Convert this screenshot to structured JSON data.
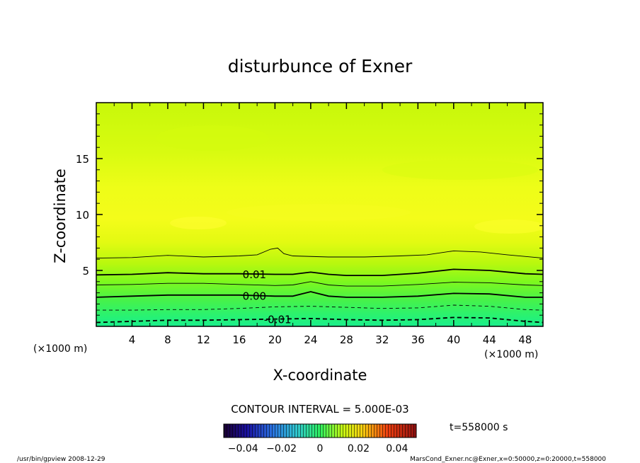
{
  "chart_data": {
    "type": "heatmap",
    "title": "disturbunce of Exner",
    "xlabel": "X-coordinate",
    "ylabel": "Z-coordinate",
    "x_unit_left": "(×1000 m)",
    "x_unit_right": "(×1000 m)",
    "xlim": [
      0,
      50
    ],
    "ylim": [
      0,
      20
    ],
    "xticks": [
      {
        "v": 4,
        "label": "4"
      },
      {
        "v": 8,
        "label": "8"
      },
      {
        "v": 12,
        "label": "12"
      },
      {
        "v": 16,
        "label": "16"
      },
      {
        "v": 20,
        "label": "20"
      },
      {
        "v": 24,
        "label": "24"
      },
      {
        "v": 28,
        "label": "28"
      },
      {
        "v": 32,
        "label": "32"
      },
      {
        "v": 36,
        "label": "36"
      },
      {
        "v": 40,
        "label": "40"
      },
      {
        "v": 44,
        "label": "44"
      },
      {
        "v": 48,
        "label": "48"
      }
    ],
    "yticks": [
      {
        "v": 5,
        "label": "5"
      },
      {
        "v": 10,
        "label": "10"
      },
      {
        "v": 15,
        "label": "15"
      }
    ],
    "contour_interval_text": "CONTOUR INTERVAL = 5.000E-03",
    "contours": [
      {
        "level": -0.01,
        "label": "-0.01",
        "style": "dashed-thick",
        "label_x": 20.3,
        "points": [
          [
            0,
            0.35
          ],
          [
            4,
            0.45
          ],
          [
            8,
            0.55
          ],
          [
            12,
            0.55
          ],
          [
            16,
            0.6
          ],
          [
            20,
            0.65
          ],
          [
            24,
            0.7
          ],
          [
            28,
            0.6
          ],
          [
            32,
            0.55
          ],
          [
            36,
            0.6
          ],
          [
            40,
            0.8
          ],
          [
            44,
            0.75
          ],
          [
            48,
            0.45
          ],
          [
            50,
            0.35
          ]
        ]
      },
      {
        "level": -0.005,
        "label": "",
        "style": "dashed-thin",
        "label_x": null,
        "points": [
          [
            0,
            1.45
          ],
          [
            4,
            1.45
          ],
          [
            8,
            1.5
          ],
          [
            12,
            1.5
          ],
          [
            16,
            1.6
          ],
          [
            20,
            1.75
          ],
          [
            24,
            1.8
          ],
          [
            28,
            1.7
          ],
          [
            32,
            1.6
          ],
          [
            36,
            1.65
          ],
          [
            40,
            1.9
          ],
          [
            44,
            1.8
          ],
          [
            48,
            1.5
          ],
          [
            50,
            1.45
          ]
        ]
      },
      {
        "level": 0.0,
        "label": "0.00",
        "style": "solid-thick",
        "label_x": 17.7,
        "points": [
          [
            0,
            2.6
          ],
          [
            4,
            2.7
          ],
          [
            8,
            2.8
          ],
          [
            12,
            2.8
          ],
          [
            16,
            2.8
          ],
          [
            20,
            2.7
          ],
          [
            22,
            2.7
          ],
          [
            24,
            3.1
          ],
          [
            26,
            2.7
          ],
          [
            28,
            2.6
          ],
          [
            32,
            2.6
          ],
          [
            36,
            2.7
          ],
          [
            40,
            2.95
          ],
          [
            44,
            2.9
          ],
          [
            48,
            2.6
          ],
          [
            50,
            2.6
          ]
        ]
      },
      {
        "level": 0.005,
        "label": "",
        "style": "solid-thin",
        "label_x": null,
        "points": [
          [
            0,
            3.7
          ],
          [
            4,
            3.75
          ],
          [
            8,
            3.85
          ],
          [
            12,
            3.85
          ],
          [
            16,
            3.75
          ],
          [
            20,
            3.65
          ],
          [
            22,
            3.7
          ],
          [
            24,
            4.0
          ],
          [
            26,
            3.7
          ],
          [
            28,
            3.6
          ],
          [
            32,
            3.6
          ],
          [
            36,
            3.75
          ],
          [
            40,
            3.95
          ],
          [
            44,
            3.9
          ],
          [
            48,
            3.7
          ],
          [
            50,
            3.65
          ]
        ]
      },
      {
        "level": 0.01,
        "label": "0.01",
        "style": "solid-thick",
        "label_x": 17.7,
        "points": [
          [
            0,
            4.6
          ],
          [
            4,
            4.65
          ],
          [
            8,
            4.8
          ],
          [
            12,
            4.7
          ],
          [
            16,
            4.7
          ],
          [
            20,
            4.65
          ],
          [
            22,
            4.65
          ],
          [
            24,
            4.85
          ],
          [
            26,
            4.65
          ],
          [
            28,
            4.55
          ],
          [
            32,
            4.55
          ],
          [
            36,
            4.75
          ],
          [
            40,
            5.1
          ],
          [
            44,
            5.0
          ],
          [
            48,
            4.7
          ],
          [
            50,
            4.65
          ]
        ]
      },
      {
        "level": 0.015,
        "label": "",
        "style": "solid-thin",
        "label_x": null,
        "points": [
          [
            0,
            6.1
          ],
          [
            4,
            6.15
          ],
          [
            8,
            6.35
          ],
          [
            12,
            6.2
          ],
          [
            16,
            6.3
          ],
          [
            18,
            6.4
          ],
          [
            19.5,
            6.9
          ],
          [
            20.3,
            7.0
          ],
          [
            21,
            6.5
          ],
          [
            22,
            6.3
          ],
          [
            26,
            6.2
          ],
          [
            30,
            6.2
          ],
          [
            34,
            6.3
          ],
          [
            37,
            6.4
          ],
          [
            40,
            6.75
          ],
          [
            43,
            6.65
          ],
          [
            46,
            6.4
          ],
          [
            50,
            6.1
          ]
        ]
      }
    ],
    "colorbar": {
      "ticks": [
        {
          "v": -0.04,
          "label": "−0.04"
        },
        {
          "v": -0.02,
          "label": "−0.02"
        },
        {
          "v": 0,
          "label": "0"
        },
        {
          "v": 0.02,
          "label": "0.02"
        },
        {
          "v": 0.04,
          "label": "0.04"
        }
      ],
      "range": [
        -0.05,
        0.05
      ]
    },
    "time_label": "t=558000 s",
    "footer_left": "/usr/bin/gpview   2008-12-29",
    "footer_right": "MarsCond_Exner.nc@Exner,x=0:50000,z=0:20000,t=558000"
  }
}
